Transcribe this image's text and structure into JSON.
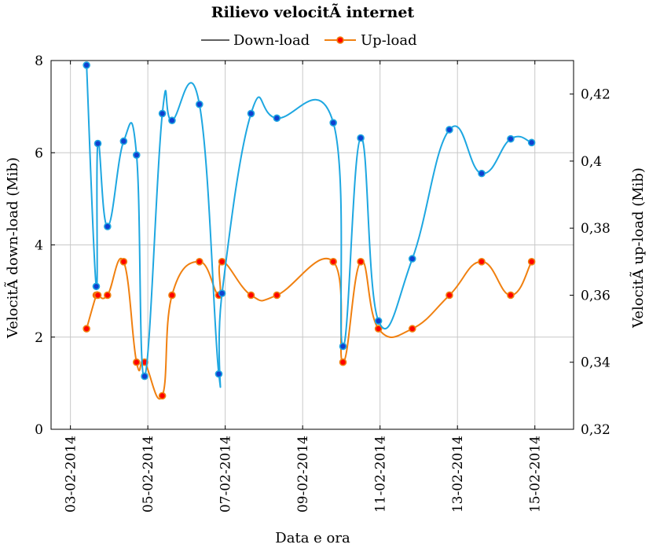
{
  "chart_data": {
    "type": "line",
    "title": "Rilievo velocitÃ  internet",
    "xlabel": "Data e ora",
    "ylabel_left": "VelocitÃ  down-load (Mib)",
    "ylabel_right": "VelocitÃ  up-load (Mib)",
    "x_axis": {
      "range": [
        "2014-02-02T12:00",
        "2014-02-16T00:00"
      ],
      "ticks": [
        "2014-02-03",
        "2014-02-05",
        "2014-02-07",
        "2014-02-09",
        "2014-02-11",
        "2014-02-13",
        "2014-02-15"
      ],
      "tick_labels": [
        "03-02-2014",
        "05-02-2014",
        "07-02-2014",
        "09-02-2014",
        "11-02-2014",
        "13-02-2014",
        "15-02-2014"
      ]
    },
    "y_left": {
      "range": [
        0,
        8
      ],
      "ticks": [
        0,
        2,
        4,
        6,
        8
      ],
      "tick_labels": [
        "0",
        "2",
        "4",
        "6",
        "8"
      ]
    },
    "y_right": {
      "range": [
        0.32,
        0.43
      ],
      "ticks": [
        0.32,
        0.34,
        0.36,
        0.38,
        0.4,
        0.42
      ],
      "tick_labels": [
        "0,32",
        "0,34",
        "0,36",
        "0,38",
        "0,4",
        "0,42"
      ]
    },
    "grid": true,
    "legend_position": "top-center",
    "series": [
      {
        "name": "Down-load",
        "axis": "left",
        "line_color": "#1ea7e1",
        "marker_fill": "#1040d0",
        "points": [
          {
            "x": "2014-02-03T10:00",
            "y": 7.9
          },
          {
            "x": "2014-02-03T16:00",
            "y": 3.1
          },
          {
            "x": "2014-02-03T17:00",
            "y": 6.2
          },
          {
            "x": "2014-02-03T23:00",
            "y": 4.4
          },
          {
            "x": "2014-02-04T09:00",
            "y": 6.25
          },
          {
            "x": "2014-02-04T17:00",
            "y": 5.95
          },
          {
            "x": "2014-02-04T22:00",
            "y": 1.15
          },
          {
            "x": "2014-02-05T09:00",
            "y": 6.85
          },
          {
            "x": "2014-02-05T15:00",
            "y": 6.7
          },
          {
            "x": "2014-02-06T08:00",
            "y": 7.05
          },
          {
            "x": "2014-02-06T20:00",
            "y": 1.2
          },
          {
            "x": "2014-02-06T22:00",
            "y": 2.95
          },
          {
            "x": "2014-02-07T16:00",
            "y": 6.85
          },
          {
            "x": "2014-02-08T08:00",
            "y": 6.75
          },
          {
            "x": "2014-02-09T19:00",
            "y": 6.65
          },
          {
            "x": "2014-02-10T01:00",
            "y": 1.8
          },
          {
            "x": "2014-02-10T12:00",
            "y": 6.32
          },
          {
            "x": "2014-02-10T23:00",
            "y": 2.35
          },
          {
            "x": "2014-02-11T20:00",
            "y": 3.7
          },
          {
            "x": "2014-02-12T19:00",
            "y": 6.5
          },
          {
            "x": "2014-02-13T15:00",
            "y": 5.55
          },
          {
            "x": "2014-02-14T09:00",
            "y": 6.3
          },
          {
            "x": "2014-02-14T22:00",
            "y": 6.22
          }
        ]
      },
      {
        "name": "Up-load",
        "axis": "right",
        "line_color": "#f08010",
        "marker_fill": "#ff0000",
        "points": [
          {
            "x": "2014-02-03T10:00",
            "y": 0.35
          },
          {
            "x": "2014-02-03T16:00",
            "y": 0.36
          },
          {
            "x": "2014-02-03T17:00",
            "y": 0.36
          },
          {
            "x": "2014-02-03T23:00",
            "y": 0.36
          },
          {
            "x": "2014-02-04T09:00",
            "y": 0.37
          },
          {
            "x": "2014-02-04T17:00",
            "y": 0.34
          },
          {
            "x": "2014-02-04T22:00",
            "y": 0.34
          },
          {
            "x": "2014-02-05T09:00",
            "y": 0.33
          },
          {
            "x": "2014-02-05T15:00",
            "y": 0.36
          },
          {
            "x": "2014-02-06T08:00",
            "y": 0.37
          },
          {
            "x": "2014-02-06T20:00",
            "y": 0.36
          },
          {
            "x": "2014-02-06T22:00",
            "y": 0.37
          },
          {
            "x": "2014-02-07T16:00",
            "y": 0.36
          },
          {
            "x": "2014-02-08T08:00",
            "y": 0.36
          },
          {
            "x": "2014-02-09T19:00",
            "y": 0.37
          },
          {
            "x": "2014-02-10T01:00",
            "y": 0.34
          },
          {
            "x": "2014-02-10T12:00",
            "y": 0.37
          },
          {
            "x": "2014-02-10T23:00",
            "y": 0.35
          },
          {
            "x": "2014-02-11T20:00",
            "y": 0.35
          },
          {
            "x": "2014-02-12T19:00",
            "y": 0.36
          },
          {
            "x": "2014-02-13T15:00",
            "y": 0.37
          },
          {
            "x": "2014-02-14T09:00",
            "y": 0.36
          },
          {
            "x": "2014-02-14T22:00",
            "y": 0.37
          }
        ]
      }
    ]
  }
}
